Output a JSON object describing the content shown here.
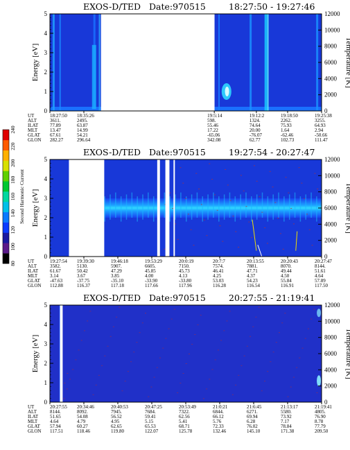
{
  "colorbar": {
    "label": "Second Harmonic Current",
    "ticks": [
      "80",
      "100",
      "120",
      "140",
      "160",
      "180",
      "200",
      "220",
      "240"
    ],
    "colors": [
      "#000000",
      "#5a1a8a",
      "#1a1aa0",
      "#0a3cff",
      "#0a7aff",
      "#00c0e8",
      "#00d8a0",
      "#00c830",
      "#60d000",
      "#d8e000",
      "#ffb000",
      "#ff5a00",
      "#e00000"
    ]
  },
  "chart_data": [
    {
      "type": "heatmap",
      "title": "EXOS-D/TED",
      "date": "Date:970515",
      "time_range": "18:27:50 - 19:27:46",
      "ylabel": "Energy [eV]",
      "y2label": "Temperature [K]",
      "ylim": [
        0,
        5
      ],
      "y2lim": [
        0,
        12000
      ],
      "yticks": [
        "0",
        "1",
        "2",
        "3",
        "4",
        "5"
      ],
      "y2ticks": [
        "0",
        "2000",
        "4000",
        "6000",
        "8000",
        "10000",
        "12000"
      ],
      "data_gaps": [
        [
          0.188,
          0.606
        ]
      ],
      "row_labels": [
        "UT",
        "ALT",
        "ILAT",
        "MLT",
        "GLAT",
        "GLON"
      ],
      "columns": [
        {
          "UT": "18:27:50",
          "ALT": "3611.",
          "ILAT": "77.89",
          "MLT": "13.47",
          "GLAT": "67.61",
          "GLON": "282.27"
        },
        {
          "UT": "18:35:26",
          "ALT": "2495.",
          "ILAT": "63.87",
          "MLT": "14.99",
          "GLAT": "54.21",
          "GLON": "296.64"
        },
        {
          "UT": "19:5:14",
          "ALT": "598.",
          "ILAT": "55.46",
          "MLT": "17.22",
          "GLAT": "-65.06",
          "GLON": "342.08"
        },
        {
          "UT": "19:12:2",
          "ALT": "1324.",
          "ILAT": "74.64",
          "MLT": "20.00",
          "GLAT": "-76.07",
          "GLON": "62.77"
        },
        {
          "UT": "19:18:50",
          "ALT": "2262.",
          "ILAT": "75.93",
          "MLT": "1.64",
          "GLAT": "-62.46",
          "GLON": "102.73"
        },
        {
          "UT": "19:25:38",
          "ALT": "3255.",
          "ILAT": "64.93",
          "MLT": "2.94",
          "GLAT": "-50.66",
          "GLON": "111.47"
        }
      ]
    },
    {
      "type": "heatmap",
      "title": "EXOS-D/TED",
      "date": "Date:970515",
      "time_range": "19:27:54 - 20:27:47",
      "ylabel": "Energy [eV]",
      "y2label": "Temperature [K]",
      "ylim": [
        0,
        5
      ],
      "y2lim": [
        0,
        12000
      ],
      "yticks": [
        "0",
        "1",
        "2",
        "3",
        "4",
        "5"
      ],
      "y2ticks": [
        "0",
        "2000",
        "4000",
        "6000",
        "8000",
        "10000",
        "12000"
      ],
      "data_gaps": [
        [
          0.07,
          0.2
        ],
        [
          0.395,
          0.405
        ],
        [
          0.425,
          0.44
        ],
        [
          0.455,
          0.46
        ]
      ],
      "row_labels": [
        "UT",
        "ALT",
        "ILAT",
        "MLT",
        "GLAT",
        "GLON"
      ],
      "columns": [
        {
          "UT": "19:27:54",
          "ALT": "3582.",
          "ILAT": "61.67",
          "MLT": "3.14",
          "GLAT": "-47.63",
          "GLON": "112.88"
        },
        {
          "UT": "19:39:30",
          "ALT": "5130.",
          "ILAT": "50.42",
          "MLT": "3.67",
          "GLAT": "-37.75",
          "GLON": "116.37"
        },
        {
          "UT": "19:46:18",
          "ALT": "5907.",
          "ILAT": "47.29",
          "MLT": "3.85",
          "GLAT": "-35.10",
          "GLON": "117.18"
        },
        {
          "UT": "19:53:29",
          "ALT": "6605.",
          "ILAT": "45.85",
          "MLT": "4.00",
          "GLAT": "-33.90",
          "GLON": "117.66"
        },
        {
          "UT": "20:0:19",
          "ALT": "7150.",
          "ILAT": "45.73",
          "MLT": "4.13",
          "GLAT": "-33.80",
          "GLON": "117.96"
        },
        {
          "UT": "20:7:7",
          "ALT": "7574.",
          "ILAT": "46.41",
          "MLT": "4.25",
          "GLAT": "53.03",
          "GLON": "116.28"
        },
        {
          "UT": "20:13:55",
          "ALT": "7881.",
          "ILAT": "47.71",
          "MLT": "4.37",
          "GLAT": "54.23",
          "GLON": "116.54"
        },
        {
          "UT": "20:20:43",
          "ALT": "8070.",
          "ILAT": "49.44",
          "MLT": "4.50",
          "GLAT": "55.84",
          "GLON": "116.91"
        },
        {
          "UT": "20:27:47",
          "ALT": "8144.",
          "ILAT": "51.61",
          "MLT": "4.64",
          "GLAT": "57.89",
          "GLON": "117.50"
        }
      ]
    },
    {
      "type": "heatmap",
      "title": "EXOS-D/TED",
      "date": "Date:970515",
      "time_range": "20:27:55 - 21:19:41",
      "ylabel": "Energy [eV]",
      "y2label": "Temperature [K]",
      "ylim": [
        0,
        5
      ],
      "y2lim": [
        0,
        12000
      ],
      "yticks": [
        "0",
        "1",
        "2",
        "3",
        "4",
        "5"
      ],
      "y2ticks": [
        "0",
        "2000",
        "4000",
        "6000",
        "8000",
        "10000",
        "12000"
      ],
      "data_gaps": [
        [
          0.037,
          0.047
        ]
      ],
      "row_labels": [
        "UT",
        "ALT",
        "ILAT",
        "MLT",
        "GLAT",
        "GLON"
      ],
      "columns": [
        {
          "UT": "20:27:55",
          "ALT": "8144.",
          "ILAT": "51.65",
          "MLT": "4.64",
          "GLAT": "57.94",
          "GLON": "117.51"
        },
        {
          "UT": "20:34:46",
          "ALT": "8092.",
          "ILAT": "54.08",
          "MLT": "4.79",
          "GLAT": "60.27",
          "GLON": "118.46"
        },
        {
          "UT": "20:40:53",
          "ALT": "7945.",
          "ILAT": "56.52",
          "MLT": "4.95",
          "GLAT": "62.65",
          "GLON": "119.80"
        },
        {
          "UT": "20:47:25",
          "ALT": "7684.",
          "ILAT": "59.41",
          "MLT": "5.15",
          "GLAT": "65.53",
          "GLON": "122.07"
        },
        {
          "UT": "20:53:49",
          "ALT": "7322.",
          "ILAT": "62.56",
          "MLT": "5.41",
          "GLAT": "68.71",
          "GLON": "125.78"
        },
        {
          "UT": "21:0:21",
          "ALT": "6844.",
          "ILAT": "66.12",
          "MLT": "5.76",
          "GLAT": "72.33",
          "GLON": "132.46"
        },
        {
          "UT": "21:6:45",
          "ALT": "6271.",
          "ILAT": "69.94",
          "MLT": "6.28",
          "GLAT": "76.02",
          "GLON": "145.10"
        },
        {
          "UT": "21:13:17",
          "ALT": "5580.",
          "ILAT": "73.92",
          "MLT": "7.17",
          "GLAT": "78.84",
          "GLON": "171.38"
        },
        {
          "UT": "21:19:41",
          "ALT": "4805.",
          "ILAT": "76.90",
          "MLT": "8.78",
          "GLAT": "77.79",
          "GLON": "209.50"
        }
      ]
    }
  ]
}
